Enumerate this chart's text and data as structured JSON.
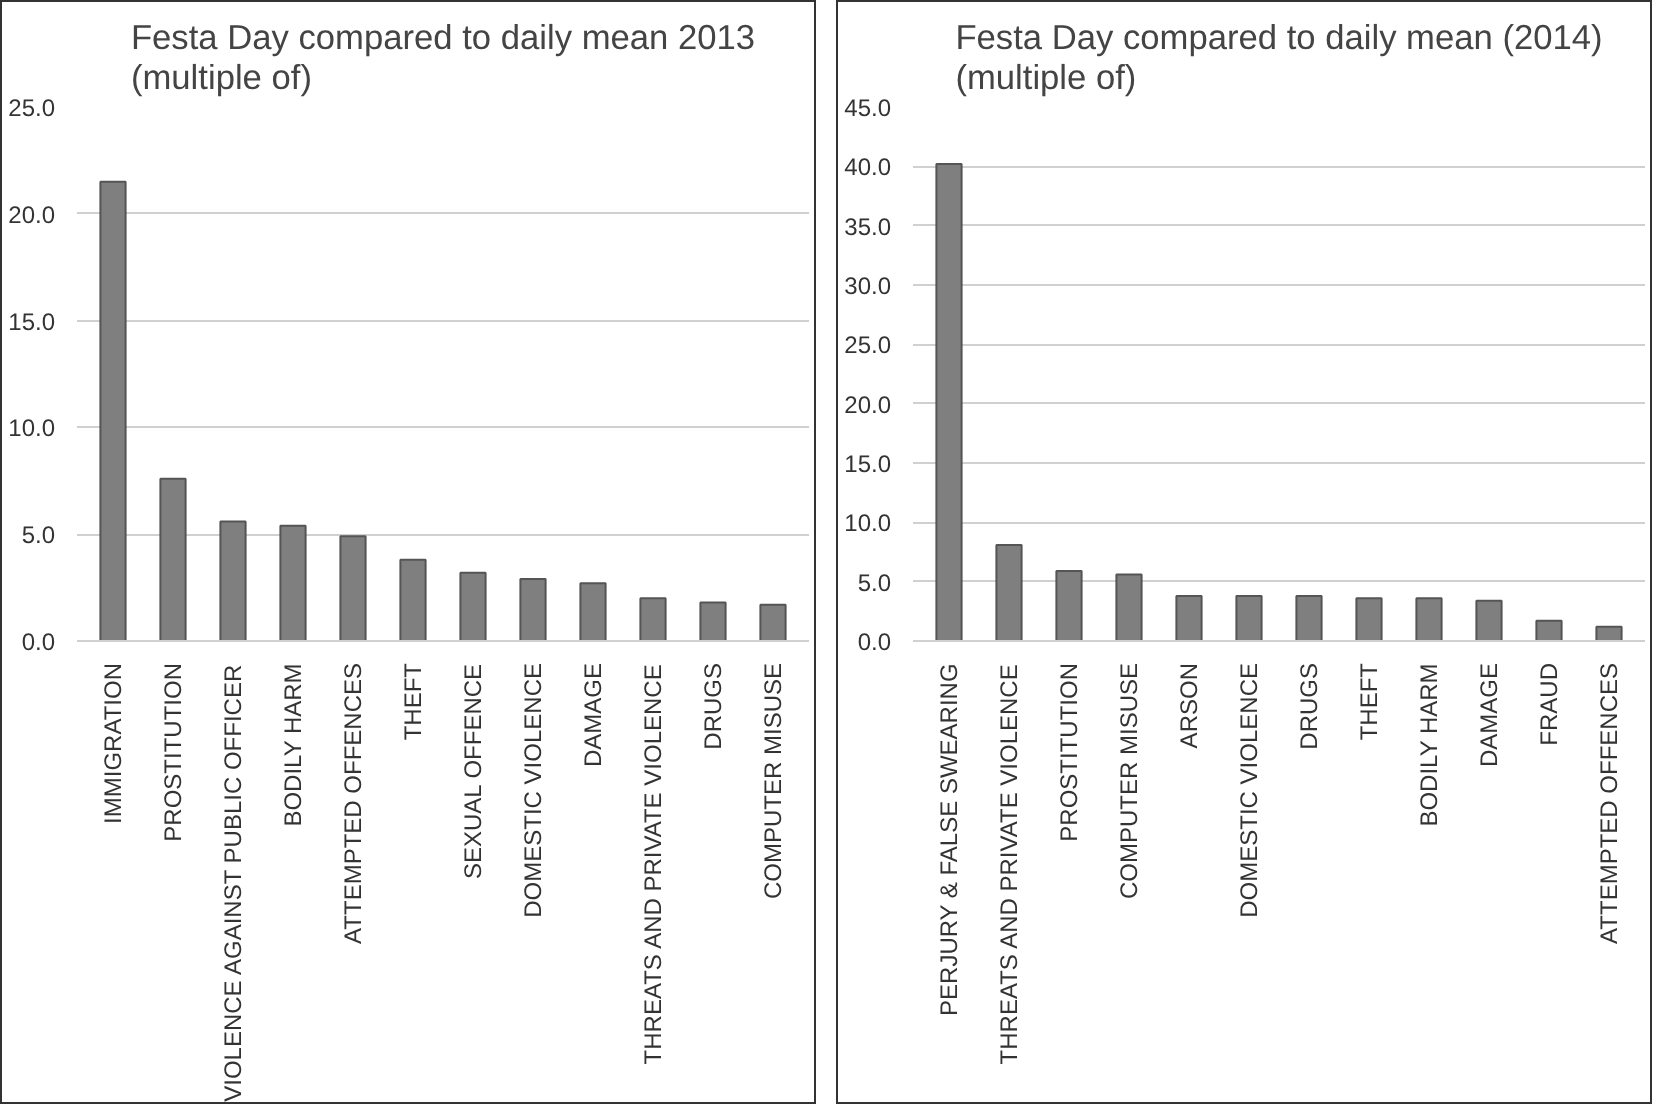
{
  "chart_data": [
    {
      "type": "bar",
      "title": "Festa Day compared to daily mean 2013\n(multiple of)",
      "categories": [
        "IMMIGRATION",
        "PROSTITUTION",
        "VIOLENCE AGAINST PUBLIC OFFICER",
        "BODILY HARM",
        "ATTEMPTED OFFENCES",
        "THEFT",
        "SEXUAL OFFENCE",
        "DOMESTIC VIOLENCE",
        "DAMAGE",
        "THREATS AND PRIVATE VIOLENCE",
        "DRUGS",
        "COMPUTER MISUSE"
      ],
      "values": [
        21.5,
        7.6,
        5.6,
        5.4,
        4.9,
        3.8,
        3.2,
        2.9,
        2.7,
        2.0,
        1.8,
        1.7
      ],
      "color": "#7f7f7f",
      "ylim": [
        0,
        25
      ],
      "yticks": [
        {
          "value": 0,
          "label": "0.0"
        },
        {
          "value": 5,
          "label": "5.0"
        },
        {
          "value": 10,
          "label": "10.0"
        },
        {
          "value": 15,
          "label": "15.0"
        },
        {
          "value": 20,
          "label": "20.0"
        },
        {
          "value": 25,
          "label": "25.0"
        }
      ],
      "grid": "y"
    },
    {
      "type": "bar",
      "title": "Festa Day compared to daily mean (2014)\n(multiple of)",
      "categories": [
        "PERJURY & FALSE SWEARING",
        "THREATS AND PRIVATE VIOLENCE",
        "PROSTITUTION",
        "COMPUTER MISUSE",
        "ARSON",
        "DOMESTIC VIOLENCE",
        "DRUGS",
        "THEFT",
        "BODILY HARM",
        "DAMAGE",
        "FRAUD",
        "ATTEMPTED OFFENCES"
      ],
      "values": [
        40.2,
        8.1,
        5.9,
        5.6,
        3.8,
        3.8,
        3.8,
        3.6,
        3.6,
        3.4,
        1.7,
        1.2
      ],
      "color": "#7f7f7f",
      "ylim": [
        0,
        45
      ],
      "yticks": [
        {
          "value": 0,
          "label": "0.0"
        },
        {
          "value": 5,
          "label": "5.0"
        },
        {
          "value": 10,
          "label": "10.0"
        },
        {
          "value": 15,
          "label": "15.0"
        },
        {
          "value": 20,
          "label": "20.0"
        },
        {
          "value": 25,
          "label": "25.0"
        },
        {
          "value": 30,
          "label": "30.0"
        },
        {
          "value": 35,
          "label": "35.0"
        },
        {
          "value": 40,
          "label": "40.0"
        },
        {
          "value": 45,
          "label": "45.0"
        }
      ],
      "grid": "y"
    }
  ]
}
